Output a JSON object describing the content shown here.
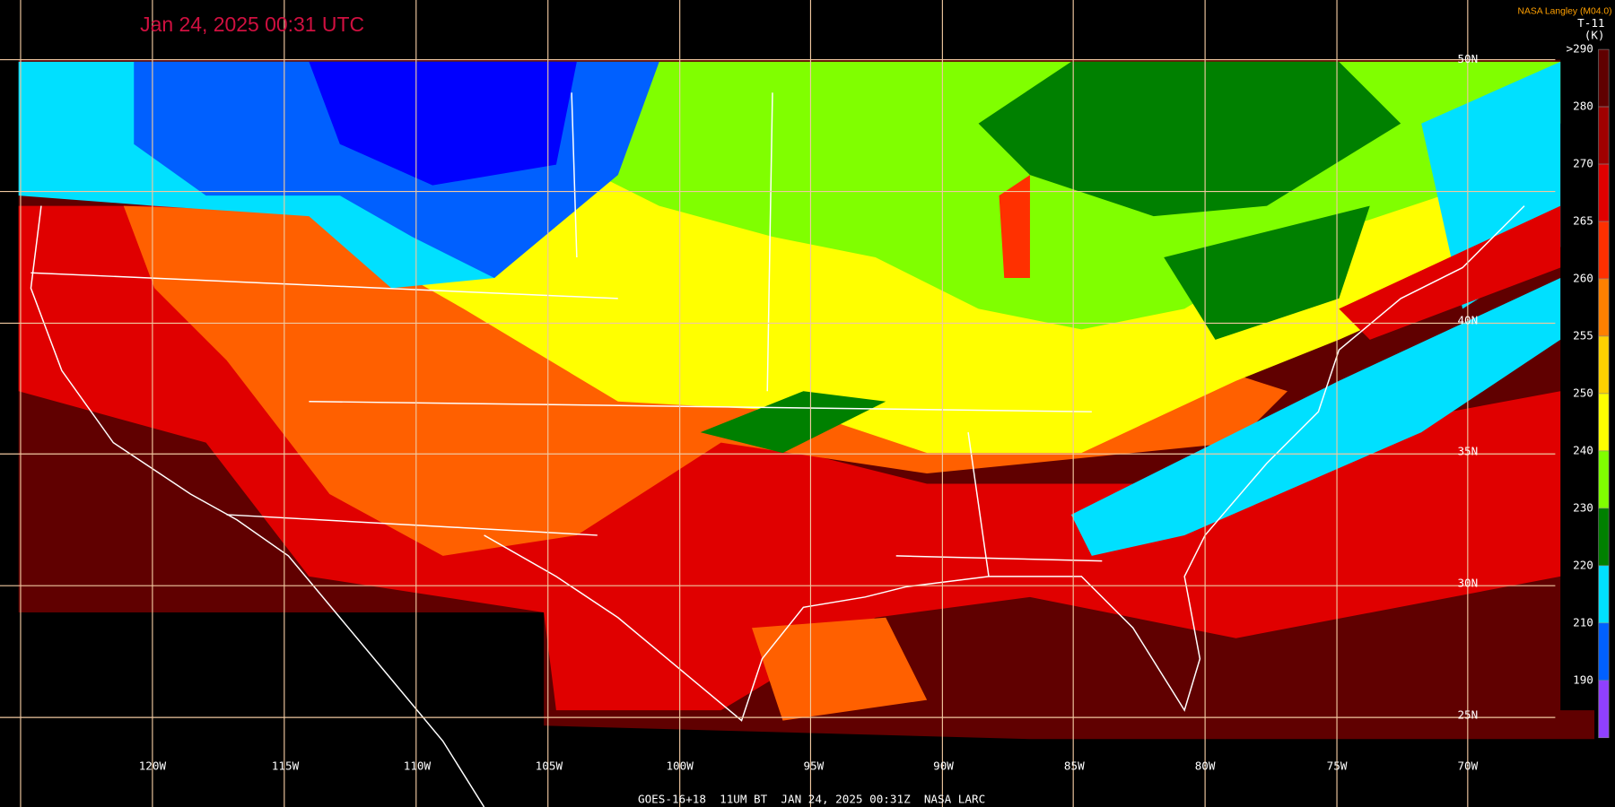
{
  "header": {
    "title": "Jan 24, 2025 00:31 UTC",
    "source": "NASA Langley (M04.0)"
  },
  "legend": {
    "product": "T-11",
    "unit": "(K)",
    "levels": [
      {
        "label": ">290",
        "color": "#600000"
      },
      {
        "label": "280",
        "color": "#a00000"
      },
      {
        "label": "270",
        "color": "#e00000"
      },
      {
        "label": "265",
        "color": "#ff3000"
      },
      {
        "label": "260",
        "color": "#ff8000"
      },
      {
        "label": "255",
        "color": "#ffd000"
      },
      {
        "label": "250",
        "color": "#ffff00"
      },
      {
        "label": "240",
        "color": "#80ff00"
      },
      {
        "label": "230",
        "color": "#008000"
      },
      {
        "label": "220",
        "color": "#00e0ff"
      },
      {
        "label": "210",
        "color": "#0060ff"
      },
      {
        "label": "190",
        "color": "#9040ff"
      }
    ]
  },
  "longitudes": [
    "120W",
    "115W",
    "110W",
    "105W",
    "100W",
    "95W",
    "90W",
    "85W",
    "80W",
    "75W",
    "70W"
  ],
  "latitudes": [
    "50N",
    "40N",
    "35N",
    "30N",
    "25N"
  ],
  "footer": "GOES-16+18  11UM BT  JAN 24, 2025 00:31Z  NASA LARC"
}
